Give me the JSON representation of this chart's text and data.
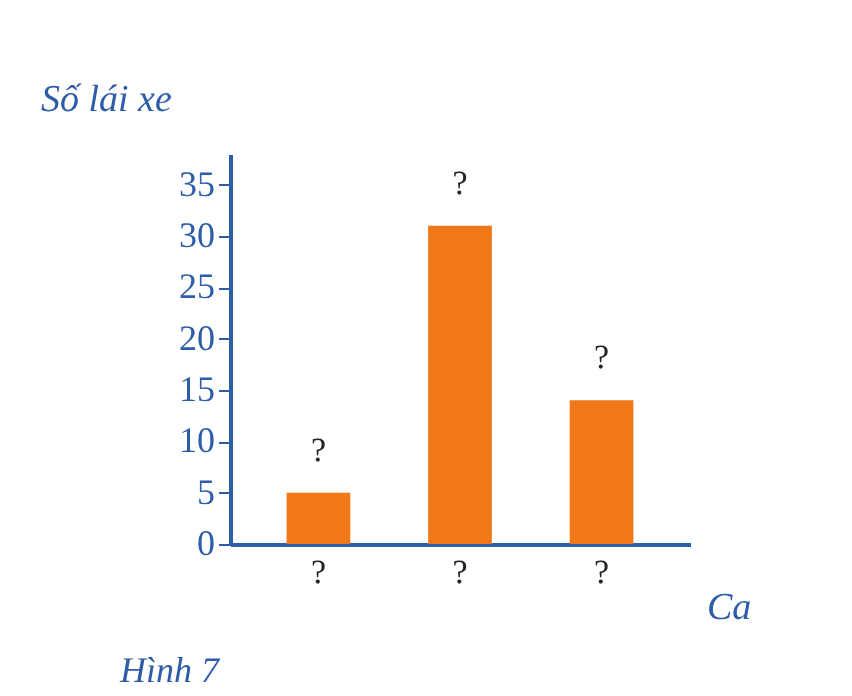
{
  "chart_data": {
    "type": "bar",
    "ylabel": "Số lái xe",
    "xlabel": "Ca",
    "annotations": [
      "Hình 7"
    ],
    "categories": [
      "?",
      "?",
      "?"
    ],
    "values": [
      5,
      31,
      14
    ],
    "color": "#f07818",
    "value_labels": [
      "?",
      "?",
      "?"
    ],
    "ylim": [
      0,
      38
    ],
    "yticks": [
      0,
      5,
      10,
      15,
      20,
      25,
      30,
      35
    ],
    "grid": false
  }
}
